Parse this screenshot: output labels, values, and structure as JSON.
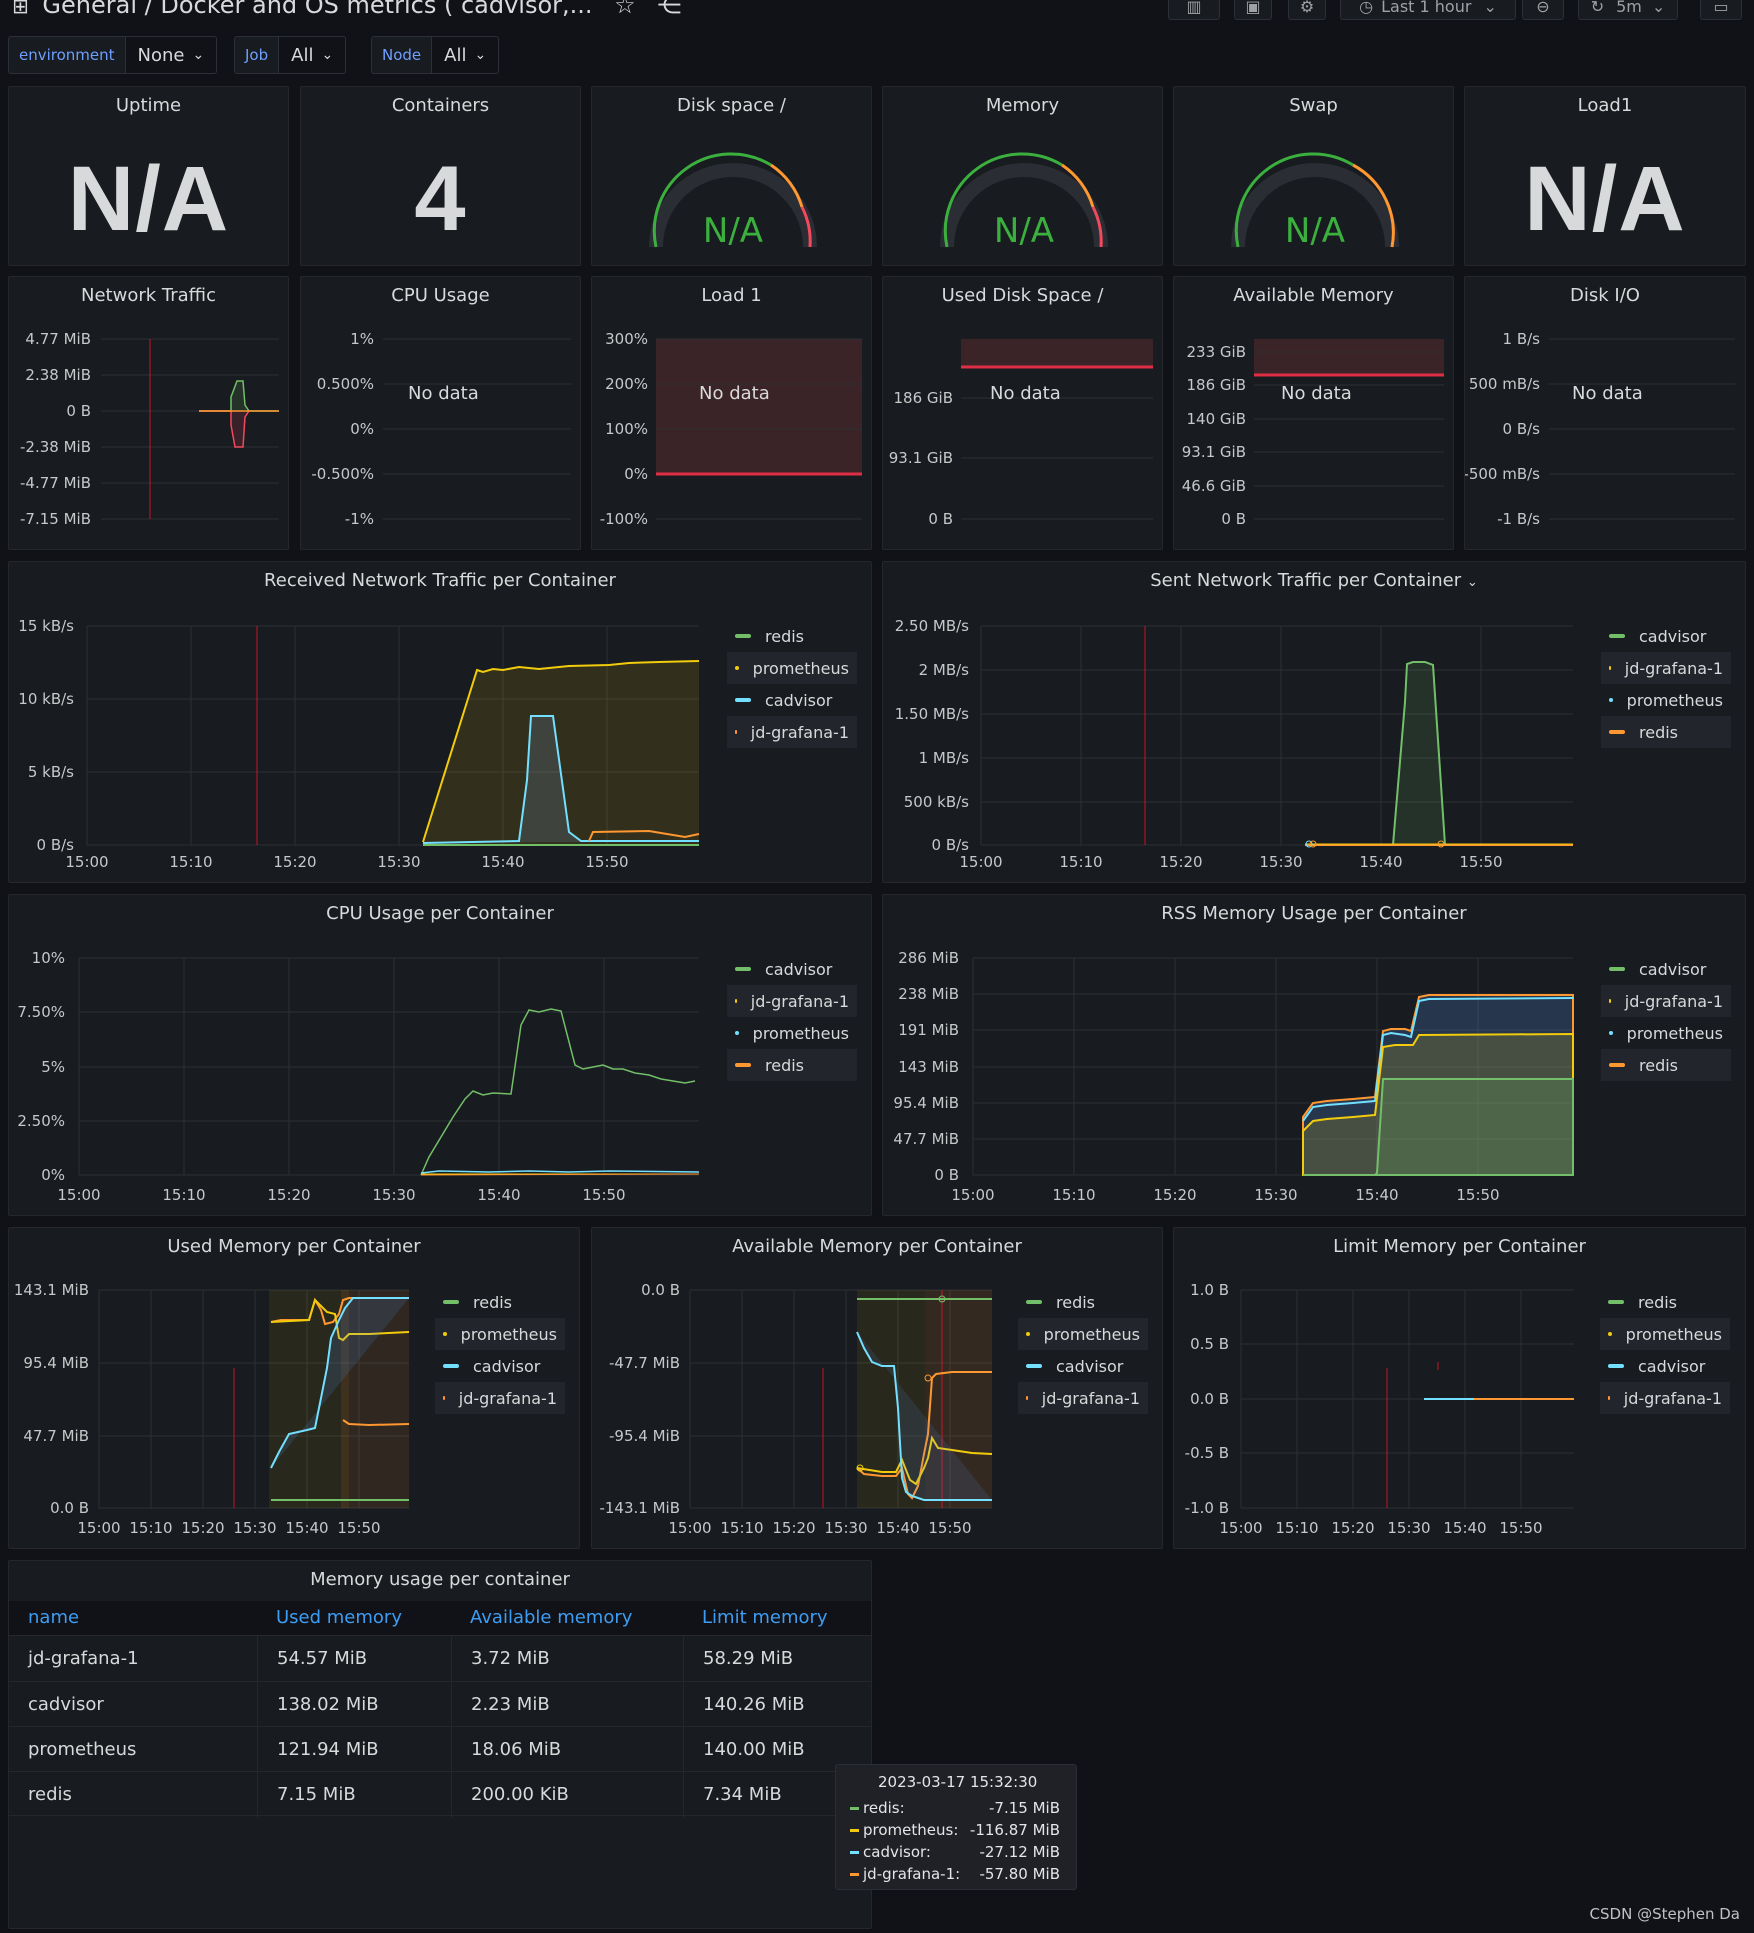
{
  "header": {
    "title": "General / Docker and OS metrics ( cadvisor,...",
    "time_range": "Last 1 hour",
    "refresh": "5m"
  },
  "variables": [
    {
      "label": "environment",
      "value": "None"
    },
    {
      "label": "Job",
      "value": "All"
    },
    {
      "label": "Node",
      "value": "All"
    }
  ],
  "stats": {
    "uptime": {
      "title": "Uptime",
      "value": "N/A"
    },
    "containers": {
      "title": "Containers",
      "value": "4"
    },
    "disk": {
      "title": "Disk space /",
      "value": "N/A"
    },
    "memory": {
      "title": "Memory",
      "value": "N/A"
    },
    "swap": {
      "title": "Swap",
      "value": "N/A"
    },
    "load1": {
      "title": "Load1",
      "value": "N/A"
    }
  },
  "small_panels": {
    "network": {
      "title": "Network Traffic",
      "yticks": [
        "4.77 MiB",
        "2.38 MiB",
        "0 B",
        "-2.38 MiB",
        "-4.77 MiB",
        "-7.15 MiB"
      ]
    },
    "cpu": {
      "title": "CPU Usage",
      "yticks": [
        "1%",
        "0.500%",
        "0%",
        "-0.500%",
        "-1%"
      ],
      "nodata": "No data"
    },
    "load": {
      "title": "Load 1",
      "yticks": [
        "300%",
        "200%",
        "100%",
        "0%",
        "-100%"
      ],
      "nodata": "No data"
    },
    "useddisk": {
      "title": "Used Disk Space /",
      "yticks": [
        "186 GiB",
        "93.1 GiB",
        "0 B"
      ],
      "nodata": "No data"
    },
    "availmem": {
      "title": "Available Memory",
      "yticks": [
        "233 GiB",
        "186 GiB",
        "140 GiB",
        "93.1 GiB",
        "46.6 GiB",
        "0 B"
      ],
      "nodata": "No data"
    },
    "diskio": {
      "title": "Disk I/O",
      "yticks": [
        "1 B/s",
        "500 mB/s",
        "0 B/s",
        "-500 mB/s",
        "-1 B/s"
      ],
      "nodata": "No data"
    }
  },
  "charts": {
    "received": {
      "title": "Received Network Traffic per Container",
      "yticks": [
        "15 kB/s",
        "10 kB/s",
        "5 kB/s",
        "0 B/s"
      ],
      "xticks": [
        "15:00",
        "15:10",
        "15:20",
        "15:30",
        "15:40",
        "15:50"
      ],
      "legend": [
        "redis",
        "prometheus",
        "cadvisor",
        "jd-grafana-1"
      ]
    },
    "sent": {
      "title": "Sent Network Traffic per Container",
      "yticks": [
        "2.50 MB/s",
        "2 MB/s",
        "1.50 MB/s",
        "1 MB/s",
        "500 kB/s",
        "0 B/s"
      ],
      "xticks": [
        "15:00",
        "15:10",
        "15:20",
        "15:30",
        "15:40",
        "15:50"
      ],
      "legend": [
        "cadvisor",
        "jd-grafana-1",
        "prometheus",
        "redis"
      ]
    },
    "cpu_container": {
      "title": "CPU Usage per Container",
      "yticks": [
        "10%",
        "7.50%",
        "5%",
        "2.50%",
        "0%"
      ],
      "xticks": [
        "15:00",
        "15:10",
        "15:20",
        "15:30",
        "15:40",
        "15:50"
      ],
      "legend": [
        "cadvisor",
        "jd-grafana-1",
        "prometheus",
        "redis"
      ]
    },
    "rss": {
      "title": "RSS Memory Usage per Container",
      "yticks": [
        "286 MiB",
        "238 MiB",
        "191 MiB",
        "143 MiB",
        "95.4 MiB",
        "47.7 MiB",
        "0 B"
      ],
      "xticks": [
        "15:00",
        "15:10",
        "15:20",
        "15:30",
        "15:40",
        "15:50"
      ],
      "legend": [
        "cadvisor",
        "jd-grafana-1",
        "prometheus",
        "redis"
      ]
    },
    "usedmem": {
      "title": "Used Memory per Container",
      "yticks": [
        "143.1 MiB",
        "95.4 MiB",
        "47.7 MiB",
        "0.0 B"
      ],
      "xticks": [
        "15:00",
        "15:10",
        "15:20",
        "15:30",
        "15:40",
        "15:50"
      ],
      "legend": [
        "redis",
        "prometheus",
        "cadvisor",
        "jd-grafana-1"
      ]
    },
    "availmem_c": {
      "title": "Available Memory per Container",
      "yticks": [
        "0.0 B",
        "-47.7 MiB",
        "-95.4 MiB",
        "-143.1 MiB"
      ],
      "xticks": [
        "15:00",
        "15:10",
        "15:20",
        "15:30",
        "15:40",
        "15:50"
      ],
      "legend": [
        "redis",
        "prometheus",
        "cadvisor",
        "jd-grafana-1"
      ]
    },
    "limitmem": {
      "title": "Limit Memory per Container",
      "yticks": [
        "1.0 B",
        "0.5 B",
        "0.0 B",
        "-0.5 B",
        "-1.0 B"
      ],
      "xticks": [
        "15:00",
        "15:10",
        "15:20",
        "15:30",
        "15:40",
        "15:50"
      ],
      "legend": [
        "redis",
        "prometheus",
        "cadvisor",
        "jd-grafana-1"
      ]
    }
  },
  "table": {
    "title": "Memory usage per container",
    "columns": [
      "name",
      "Used memory",
      "Available memory",
      "Limit memory"
    ],
    "rows": [
      [
        "jd-grafana-1",
        "54.57 MiB",
        "3.72 MiB",
        "58.29 MiB"
      ],
      [
        "cadvisor",
        "138.02 MiB",
        "2.23 MiB",
        "140.26 MiB"
      ],
      [
        "prometheus",
        "121.94 MiB",
        "18.06 MiB",
        "140.00 MiB"
      ],
      [
        "redis",
        "7.15 MiB",
        "200.00 KiB",
        "7.34 MiB"
      ]
    ]
  },
  "tooltip": {
    "time": "2023-03-17 15:32:30",
    "rows": [
      {
        "name": "redis:",
        "value": "-7.15 MiB"
      },
      {
        "name": "prometheus:",
        "value": "-116.87 MiB"
      },
      {
        "name": "cadvisor:",
        "value": "-27.12 MiB"
      },
      {
        "name": "jd-grafana-1:",
        "value": "-57.80 MiB"
      }
    ]
  },
  "colors": {
    "redis": "#73bf69",
    "prometheus": "#f2cc0c",
    "cadvisor": "#8ab8ff",
    "jd-grafana-1": "#ff9830",
    "green": "#73bf69",
    "yellow": "#fade2a",
    "blue": "#5794f2",
    "orange": "#ff9830",
    "red": "#f2495c",
    "accent": "#3d9df3"
  },
  "watermark": "CSDN @Stephen Da"
}
